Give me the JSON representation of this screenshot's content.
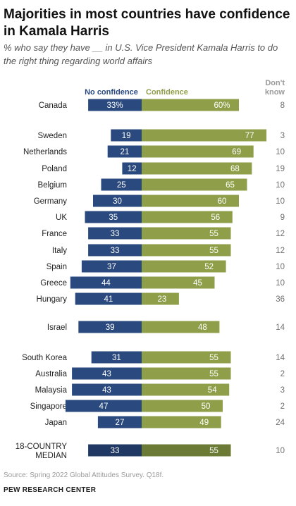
{
  "title": "Majorities in most countries have confidence in Kamala Harris",
  "subtitle": "% who say they have __ in U.S. Vice President Kamala Harris to do the right thing regarding world affairs",
  "source": "Source: Spring 2022 Global Attitudes Survey. Q18f.",
  "brand": "PEW RESEARCH CENTER",
  "colors": {
    "no_confidence": "#2a4a7f",
    "confidence": "#8f9e48",
    "median_no_confidence": "#1f3864",
    "median_confidence": "#6b7a34",
    "dont_know_text": "#707070"
  },
  "chart_data": {
    "type": "bar",
    "headers": {
      "no_confidence": "No confidence",
      "confidence": "Confidence",
      "dont_know": [
        "Don't",
        "know"
      ]
    },
    "rows": [
      {
        "country": "Canada",
        "no_confidence": 33,
        "no_confidence_label": "33%",
        "confidence": 60,
        "confidence_label": "60%",
        "dont_know": 8
      },
      {
        "country": "Sweden",
        "no_confidence": 19,
        "no_confidence_label": "19",
        "confidence": 77,
        "confidence_label": "77",
        "dont_know": 3
      },
      {
        "country": "Netherlands",
        "no_confidence": 21,
        "no_confidence_label": "21",
        "confidence": 69,
        "confidence_label": "69",
        "dont_know": 10
      },
      {
        "country": "Poland",
        "no_confidence": 12,
        "no_confidence_label": "12",
        "confidence": 68,
        "confidence_label": "68",
        "dont_know": 19
      },
      {
        "country": "Belgium",
        "no_confidence": 25,
        "no_confidence_label": "25",
        "confidence": 65,
        "confidence_label": "65",
        "dont_know": 10
      },
      {
        "country": "Germany",
        "no_confidence": 30,
        "no_confidence_label": "30",
        "confidence": 60,
        "confidence_label": "60",
        "dont_know": 10
      },
      {
        "country": "UK",
        "no_confidence": 35,
        "no_confidence_label": "35",
        "confidence": 56,
        "confidence_label": "56",
        "dont_know": 9
      },
      {
        "country": "France",
        "no_confidence": 33,
        "no_confidence_label": "33",
        "confidence": 55,
        "confidence_label": "55",
        "dont_know": 12
      },
      {
        "country": "Italy",
        "no_confidence": 33,
        "no_confidence_label": "33",
        "confidence": 55,
        "confidence_label": "55",
        "dont_know": 12
      },
      {
        "country": "Spain",
        "no_confidence": 37,
        "no_confidence_label": "37",
        "confidence": 52,
        "confidence_label": "52",
        "dont_know": 10
      },
      {
        "country": "Greece",
        "no_confidence": 44,
        "no_confidence_label": "44",
        "confidence": 45,
        "confidence_label": "45",
        "dont_know": 10
      },
      {
        "country": "Hungary",
        "no_confidence": 41,
        "no_confidence_label": "41",
        "confidence": 23,
        "confidence_label": "23",
        "dont_know": 36
      },
      {
        "country": "Israel",
        "no_confidence": 39,
        "no_confidence_label": "39",
        "confidence": 48,
        "confidence_label": "48",
        "dont_know": 14
      },
      {
        "country": "South Korea",
        "no_confidence": 31,
        "no_confidence_label": "31",
        "confidence": 55,
        "confidence_label": "55",
        "dont_know": 14
      },
      {
        "country": "Australia",
        "no_confidence": 43,
        "no_confidence_label": "43",
        "confidence": 55,
        "confidence_label": "55",
        "dont_know": 2
      },
      {
        "country": "Malaysia",
        "no_confidence": 43,
        "no_confidence_label": "43",
        "confidence": 54,
        "confidence_label": "54",
        "dont_know": 3
      },
      {
        "country": "Singapore",
        "no_confidence": 47,
        "no_confidence_label": "47",
        "confidence": 50,
        "confidence_label": "50",
        "dont_know": 2
      },
      {
        "country": "Japan",
        "no_confidence": 27,
        "no_confidence_label": "27",
        "confidence": 49,
        "confidence_label": "49",
        "dont_know": 24
      },
      {
        "country": [
          "18-COUNTRY",
          "MEDIAN"
        ],
        "no_confidence": 33,
        "no_confidence_label": "33",
        "confidence": 55,
        "confidence_label": "55",
        "dont_know": 10,
        "median": true
      }
    ]
  }
}
